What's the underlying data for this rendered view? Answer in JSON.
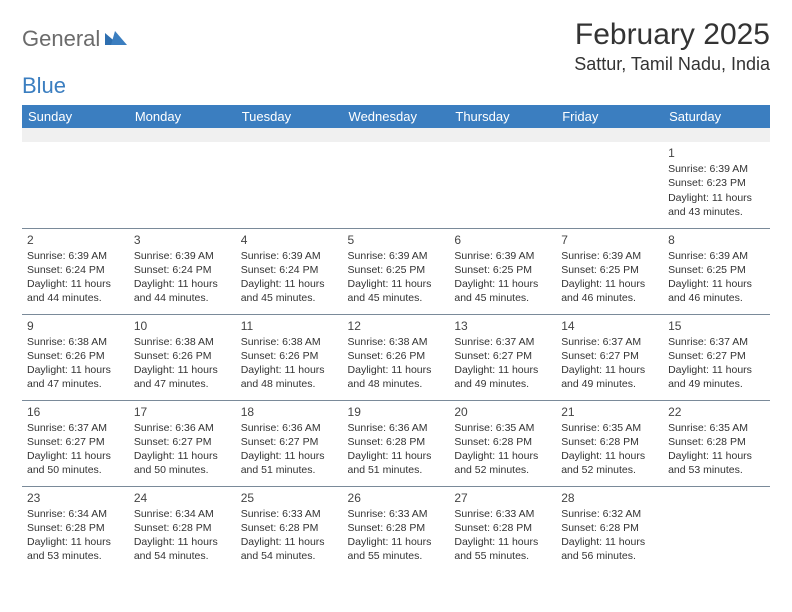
{
  "colors": {
    "header_bg": "#3b7ec0",
    "header_text": "#ffffff",
    "body_text": "#333333",
    "logo_gray": "#6b6b6b",
    "logo_blue": "#3b7ec0",
    "cell_border": "#7a8a99",
    "blank_row_bg": "#f0f0f0",
    "page_bg": "#ffffff"
  },
  "logo": {
    "part1": "General",
    "part2": "Blue"
  },
  "title": "February 2025",
  "location": "Sattur, Tamil Nadu, India",
  "weekdays": [
    "Sunday",
    "Monday",
    "Tuesday",
    "Wednesday",
    "Thursday",
    "Friday",
    "Saturday"
  ],
  "layout": {
    "columns": 7,
    "rows": 5,
    "first_day_col_index": 6,
    "blank_leading_row": true
  },
  "days": [
    {
      "n": "1",
      "sunrise": "Sunrise: 6:39 AM",
      "sunset": "Sunset: 6:23 PM",
      "daylight": "Daylight: 11 hours and 43 minutes."
    },
    {
      "n": "2",
      "sunrise": "Sunrise: 6:39 AM",
      "sunset": "Sunset: 6:24 PM",
      "daylight": "Daylight: 11 hours and 44 minutes."
    },
    {
      "n": "3",
      "sunrise": "Sunrise: 6:39 AM",
      "sunset": "Sunset: 6:24 PM",
      "daylight": "Daylight: 11 hours and 44 minutes."
    },
    {
      "n": "4",
      "sunrise": "Sunrise: 6:39 AM",
      "sunset": "Sunset: 6:24 PM",
      "daylight": "Daylight: 11 hours and 45 minutes."
    },
    {
      "n": "5",
      "sunrise": "Sunrise: 6:39 AM",
      "sunset": "Sunset: 6:25 PM",
      "daylight": "Daylight: 11 hours and 45 minutes."
    },
    {
      "n": "6",
      "sunrise": "Sunrise: 6:39 AM",
      "sunset": "Sunset: 6:25 PM",
      "daylight": "Daylight: 11 hours and 45 minutes."
    },
    {
      "n": "7",
      "sunrise": "Sunrise: 6:39 AM",
      "sunset": "Sunset: 6:25 PM",
      "daylight": "Daylight: 11 hours and 46 minutes."
    },
    {
      "n": "8",
      "sunrise": "Sunrise: 6:39 AM",
      "sunset": "Sunset: 6:25 PM",
      "daylight": "Daylight: 11 hours and 46 minutes."
    },
    {
      "n": "9",
      "sunrise": "Sunrise: 6:38 AM",
      "sunset": "Sunset: 6:26 PM",
      "daylight": "Daylight: 11 hours and 47 minutes."
    },
    {
      "n": "10",
      "sunrise": "Sunrise: 6:38 AM",
      "sunset": "Sunset: 6:26 PM",
      "daylight": "Daylight: 11 hours and 47 minutes."
    },
    {
      "n": "11",
      "sunrise": "Sunrise: 6:38 AM",
      "sunset": "Sunset: 6:26 PM",
      "daylight": "Daylight: 11 hours and 48 minutes."
    },
    {
      "n": "12",
      "sunrise": "Sunrise: 6:38 AM",
      "sunset": "Sunset: 6:26 PM",
      "daylight": "Daylight: 11 hours and 48 minutes."
    },
    {
      "n": "13",
      "sunrise": "Sunrise: 6:37 AM",
      "sunset": "Sunset: 6:27 PM",
      "daylight": "Daylight: 11 hours and 49 minutes."
    },
    {
      "n": "14",
      "sunrise": "Sunrise: 6:37 AM",
      "sunset": "Sunset: 6:27 PM",
      "daylight": "Daylight: 11 hours and 49 minutes."
    },
    {
      "n": "15",
      "sunrise": "Sunrise: 6:37 AM",
      "sunset": "Sunset: 6:27 PM",
      "daylight": "Daylight: 11 hours and 49 minutes."
    },
    {
      "n": "16",
      "sunrise": "Sunrise: 6:37 AM",
      "sunset": "Sunset: 6:27 PM",
      "daylight": "Daylight: 11 hours and 50 minutes."
    },
    {
      "n": "17",
      "sunrise": "Sunrise: 6:36 AM",
      "sunset": "Sunset: 6:27 PM",
      "daylight": "Daylight: 11 hours and 50 minutes."
    },
    {
      "n": "18",
      "sunrise": "Sunrise: 6:36 AM",
      "sunset": "Sunset: 6:27 PM",
      "daylight": "Daylight: 11 hours and 51 minutes."
    },
    {
      "n": "19",
      "sunrise": "Sunrise: 6:36 AM",
      "sunset": "Sunset: 6:28 PM",
      "daylight": "Daylight: 11 hours and 51 minutes."
    },
    {
      "n": "20",
      "sunrise": "Sunrise: 6:35 AM",
      "sunset": "Sunset: 6:28 PM",
      "daylight": "Daylight: 11 hours and 52 minutes."
    },
    {
      "n": "21",
      "sunrise": "Sunrise: 6:35 AM",
      "sunset": "Sunset: 6:28 PM",
      "daylight": "Daylight: 11 hours and 52 minutes."
    },
    {
      "n": "22",
      "sunrise": "Sunrise: 6:35 AM",
      "sunset": "Sunset: 6:28 PM",
      "daylight": "Daylight: 11 hours and 53 minutes."
    },
    {
      "n": "23",
      "sunrise": "Sunrise: 6:34 AM",
      "sunset": "Sunset: 6:28 PM",
      "daylight": "Daylight: 11 hours and 53 minutes."
    },
    {
      "n": "24",
      "sunrise": "Sunrise: 6:34 AM",
      "sunset": "Sunset: 6:28 PM",
      "daylight": "Daylight: 11 hours and 54 minutes."
    },
    {
      "n": "25",
      "sunrise": "Sunrise: 6:33 AM",
      "sunset": "Sunset: 6:28 PM",
      "daylight": "Daylight: 11 hours and 54 minutes."
    },
    {
      "n": "26",
      "sunrise": "Sunrise: 6:33 AM",
      "sunset": "Sunset: 6:28 PM",
      "daylight": "Daylight: 11 hours and 55 minutes."
    },
    {
      "n": "27",
      "sunrise": "Sunrise: 6:33 AM",
      "sunset": "Sunset: 6:28 PM",
      "daylight": "Daylight: 11 hours and 55 minutes."
    },
    {
      "n": "28",
      "sunrise": "Sunrise: 6:32 AM",
      "sunset": "Sunset: 6:28 PM",
      "daylight": "Daylight: 11 hours and 56 minutes."
    }
  ]
}
